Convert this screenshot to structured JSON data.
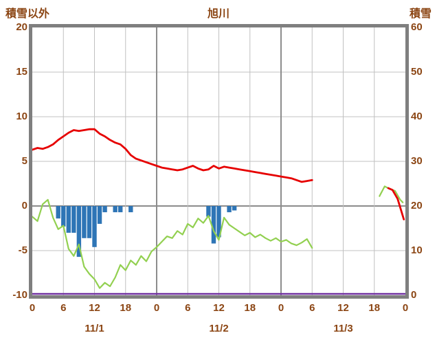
{
  "colors": {
    "text": "#8b4513",
    "frame": "#7f7f7f",
    "grid": "#c0c0c0",
    "grid_major": "#8c8c8c",
    "background": "#ffffff",
    "red_line": "#e60000",
    "green_line": "#92d050",
    "bar_blue": "#2e75b6",
    "purple_line": "#7030a0"
  },
  "chart_data": {
    "type": "line+bar",
    "title": "旭川",
    "left_axis": {
      "title": "積雪以外",
      "min": -10,
      "max": 20,
      "ticks": [
        20,
        15,
        10,
        5,
        0,
        -5,
        -10
      ]
    },
    "right_axis": {
      "title": "積雪",
      "min": 0,
      "max": 60,
      "ticks": [
        60,
        50,
        40,
        30,
        20,
        10,
        0
      ]
    },
    "x_axis": {
      "hours_total": 72,
      "hour_ticks": [
        "0",
        "6",
        "12",
        "18",
        "0",
        "6",
        "12",
        "18",
        "0",
        "6",
        "12",
        "18",
        "0"
      ],
      "date_labels": [
        "11/1",
        "11/2",
        "11/3"
      ]
    },
    "series": [
      {
        "name": "green-line-main",
        "axis": "left",
        "color": "#92d050",
        "width": 2.2,
        "points": [
          [
            0,
            -1.2
          ],
          [
            1,
            -1.7
          ],
          [
            2,
            0.2
          ],
          [
            3,
            0.7
          ],
          [
            4,
            -1.3
          ],
          [
            5,
            -2.6
          ],
          [
            6,
            -2.2
          ],
          [
            7,
            -4.8
          ],
          [
            8,
            -5.6
          ],
          [
            9,
            -4.3
          ],
          [
            10,
            -6.8
          ],
          [
            11,
            -7.6
          ],
          [
            12,
            -8.2
          ],
          [
            13,
            -9.2
          ],
          [
            14,
            -8.6
          ],
          [
            15,
            -9.0
          ],
          [
            16,
            -8.0
          ],
          [
            17,
            -6.6
          ],
          [
            18,
            -7.2
          ],
          [
            19,
            -6.1
          ],
          [
            20,
            -6.6
          ],
          [
            21,
            -5.6
          ],
          [
            22,
            -6.2
          ],
          [
            23,
            -5.1
          ],
          [
            24,
            -4.6
          ],
          [
            25,
            -4.0
          ],
          [
            26,
            -3.4
          ],
          [
            27,
            -3.6
          ],
          [
            28,
            -2.8
          ],
          [
            29,
            -3.2
          ],
          [
            30,
            -2.0
          ],
          [
            31,
            -2.4
          ],
          [
            32,
            -1.4
          ],
          [
            33,
            -1.9
          ],
          [
            34,
            -1.1
          ],
          [
            35,
            -2.8
          ],
          [
            36,
            -3.8
          ],
          [
            37,
            -1.3
          ],
          [
            38,
            -2.1
          ],
          [
            39,
            -2.5
          ],
          [
            40,
            -2.9
          ],
          [
            41,
            -3.3
          ],
          [
            42,
            -3.0
          ],
          [
            43,
            -3.5
          ],
          [
            44,
            -3.2
          ],
          [
            45,
            -3.6
          ],
          [
            46,
            -3.9
          ],
          [
            47,
            -3.6
          ],
          [
            48,
            -4.0
          ],
          [
            49,
            -3.8
          ],
          [
            50,
            -4.2
          ],
          [
            51,
            -4.4
          ],
          [
            52,
            -4.1
          ],
          [
            53,
            -3.7
          ],
          [
            54,
            -4.7
          ]
        ]
      },
      {
        "name": "green-line-late",
        "axis": "left",
        "color": "#92d050",
        "width": 2.2,
        "points": [
          [
            67,
            1.1
          ],
          [
            68,
            2.2
          ],
          [
            69,
            1.9
          ],
          [
            70,
            1.7
          ],
          [
            71,
            0.7
          ],
          [
            71.5,
            0.4
          ]
        ]
      },
      {
        "name": "red-line-main",
        "axis": "left",
        "color": "#e60000",
        "width": 2.8,
        "points": [
          [
            0,
            6.3
          ],
          [
            1,
            6.5
          ],
          [
            2,
            6.4
          ],
          [
            3,
            6.6
          ],
          [
            4,
            6.9
          ],
          [
            5,
            7.4
          ],
          [
            6,
            7.8
          ],
          [
            7,
            8.2
          ],
          [
            8,
            8.5
          ],
          [
            9,
            8.4
          ],
          [
            10,
            8.5
          ],
          [
            11,
            8.6
          ],
          [
            12,
            8.6
          ],
          [
            13,
            8.1
          ],
          [
            14,
            7.8
          ],
          [
            15,
            7.4
          ],
          [
            16,
            7.1
          ],
          [
            17,
            6.9
          ],
          [
            18,
            6.4
          ],
          [
            19,
            5.7
          ],
          [
            20,
            5.3
          ],
          [
            21,
            5.1
          ],
          [
            22,
            4.9
          ],
          [
            23,
            4.7
          ],
          [
            24,
            4.5
          ],
          [
            25,
            4.3
          ],
          [
            26,
            4.2
          ],
          [
            27,
            4.1
          ],
          [
            28,
            4.0
          ],
          [
            29,
            4.1
          ],
          [
            30,
            4.3
          ],
          [
            31,
            4.5
          ],
          [
            32,
            4.2
          ],
          [
            33,
            4.0
          ],
          [
            34,
            4.1
          ],
          [
            35,
            4.5
          ],
          [
            36,
            4.2
          ],
          [
            37,
            4.4
          ],
          [
            38,
            4.3
          ],
          [
            39,
            4.2
          ],
          [
            40,
            4.1
          ],
          [
            41,
            4.0
          ],
          [
            42,
            3.9
          ],
          [
            43,
            3.8
          ],
          [
            44,
            3.7
          ],
          [
            45,
            3.6
          ],
          [
            46,
            3.5
          ],
          [
            47,
            3.4
          ],
          [
            48,
            3.3
          ],
          [
            49,
            3.2
          ],
          [
            50,
            3.1
          ],
          [
            51,
            2.9
          ],
          [
            52,
            2.7
          ],
          [
            53,
            2.8
          ],
          [
            54,
            2.9
          ]
        ]
      },
      {
        "name": "red-line-late",
        "axis": "left",
        "color": "#e60000",
        "width": 2.8,
        "points": [
          [
            68.7,
            2.0
          ],
          [
            69.5,
            1.8
          ],
          [
            70.5,
            0.8
          ],
          [
            71.7,
            -1.5
          ]
        ]
      },
      {
        "name": "snow-depth-line",
        "axis": "right",
        "color": "#7030a0",
        "width": 2.5,
        "points": [
          [
            0,
            0
          ],
          [
            72,
            0
          ]
        ]
      }
    ],
    "bars": {
      "name": "precipitation-bars",
      "axis": "left",
      "color": "#2e75b6",
      "direction": "down",
      "values": [
        [
          5,
          1.4
        ],
        [
          6,
          2.3
        ],
        [
          7,
          3.0
        ],
        [
          8,
          3.0
        ],
        [
          9,
          5.7
        ],
        [
          10,
          3.6
        ],
        [
          11,
          3.6
        ],
        [
          12,
          4.6
        ],
        [
          13,
          2.0
        ],
        [
          14,
          0.7
        ],
        [
          16,
          0.7
        ],
        [
          17,
          0.7
        ],
        [
          19,
          0.7
        ],
        [
          34,
          1.2
        ],
        [
          35,
          4.2
        ],
        [
          36,
          3.5
        ],
        [
          38,
          0.7
        ],
        [
          39,
          0.5
        ]
      ]
    }
  }
}
